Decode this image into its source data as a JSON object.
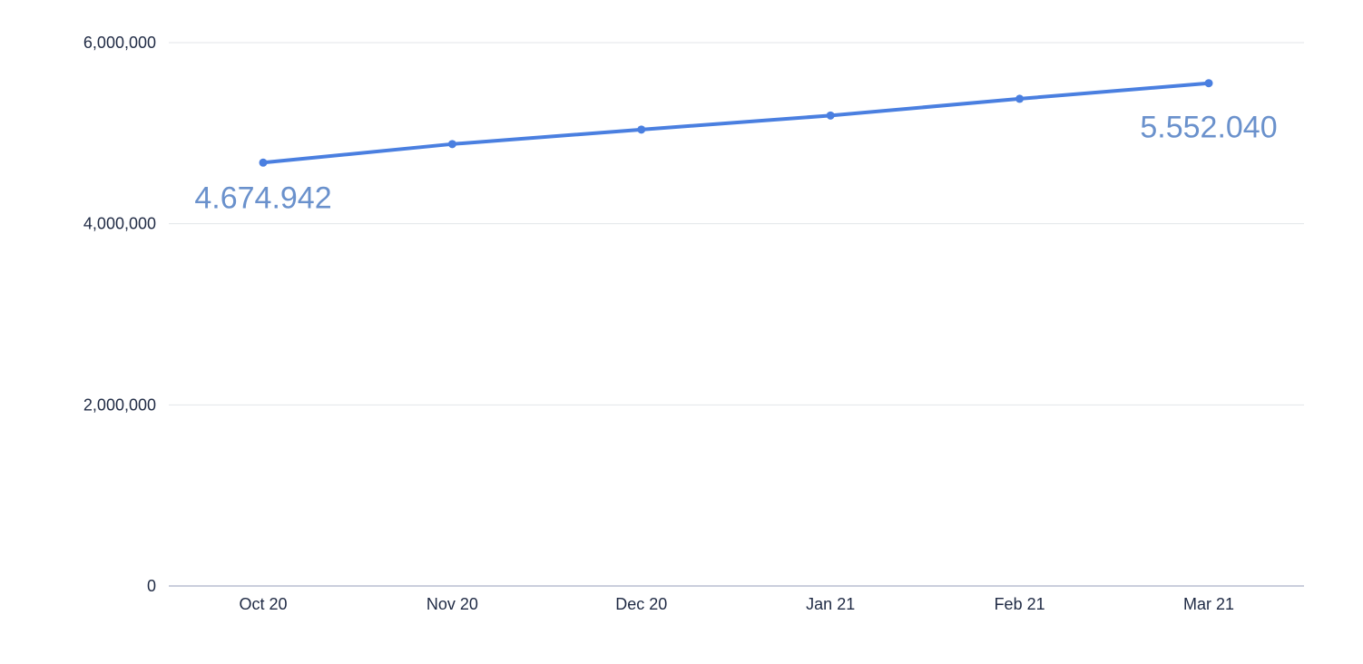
{
  "chart_data": {
    "type": "line",
    "categories": [
      "Oct 20",
      "Nov 20",
      "Dec 20",
      "Jan 21",
      "Feb 21",
      "Mar 21"
    ],
    "series": [
      {
        "values": [
          4674942,
          4880000,
          5040000,
          5195000,
          5380000,
          5552040
        ]
      }
    ],
    "ylim": [
      0,
      6000000
    ],
    "yticks": [
      0,
      2000000,
      4000000,
      6000000
    ],
    "ytick_labels": [
      "0",
      "2,000,000",
      "4,000,000",
      "6,000,000"
    ],
    "data_labels": [
      {
        "index": 0,
        "text": "4.674.942",
        "position": "below"
      },
      {
        "index": 5,
        "text": "5.552.040",
        "position": "above"
      }
    ],
    "grid": true,
    "legend": "none",
    "colors": {
      "line": "#4a7fe0",
      "data_label": "#6a91cc",
      "grid": "#e3e6ea",
      "axis": "#b8bdd0",
      "tick_text": "#1f2a44"
    }
  }
}
